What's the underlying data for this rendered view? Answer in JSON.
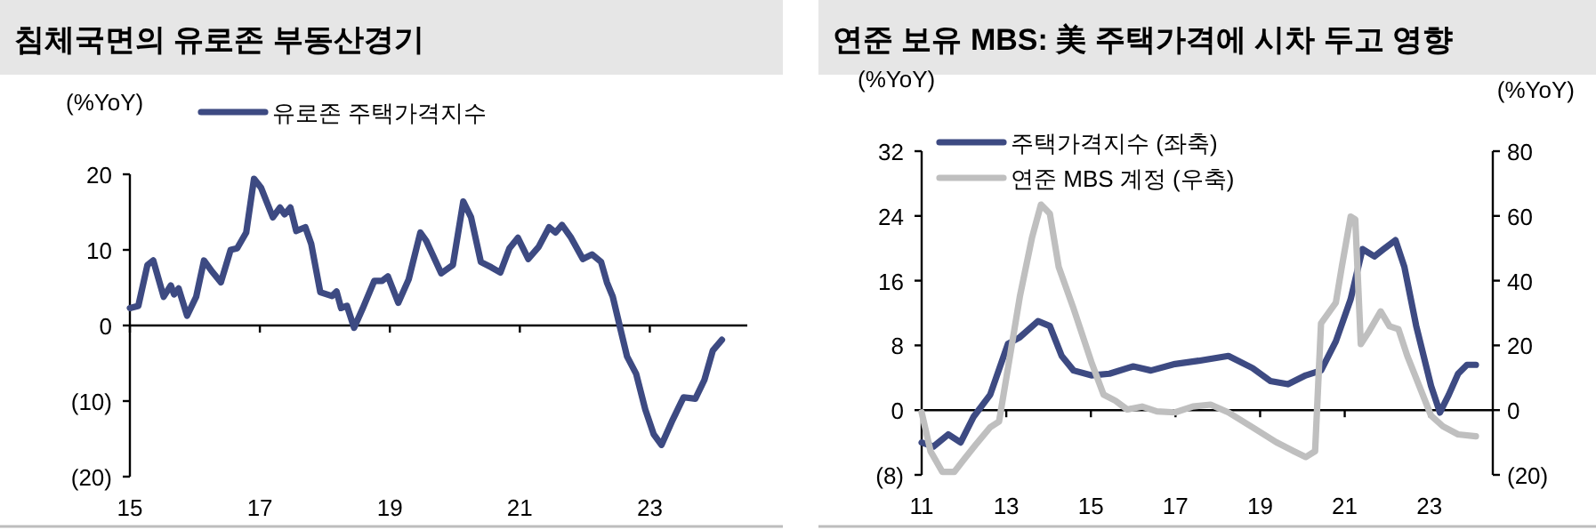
{
  "chart_data": [
    {
      "type": "line",
      "title": "침체국면의 유로존 부동산경기",
      "ylabel": "(%YoY)",
      "legend": "top left",
      "xlim": [
        15,
        24.5
      ],
      "ylim": [
        -20,
        20
      ],
      "xticks": [
        15,
        17,
        19,
        21,
        23
      ],
      "yticks": [
        {
          "value": -20,
          "label": "(20)"
        },
        {
          "value": -10,
          "label": "(10)"
        },
        0,
        10,
        20
      ],
      "series": [
        {
          "name": "유로존 주택가격지수",
          "color": "#3d4a82",
          "x": [
            15.0,
            15.13,
            15.27,
            15.36,
            15.52,
            15.63,
            15.68,
            15.75,
            15.88,
            16.02,
            16.14,
            16.25,
            16.4,
            16.55,
            16.65,
            16.79,
            16.91,
            17.02,
            17.2,
            17.31,
            17.38,
            17.47,
            17.56,
            17.7,
            17.79,
            17.93,
            18.11,
            18.18,
            18.25,
            18.34,
            18.45,
            18.58,
            18.76,
            18.88,
            18.97,
            19.13,
            19.29,
            19.47,
            19.56,
            19.79,
            19.97,
            20.13,
            20.25,
            20.4,
            20.56,
            20.7,
            20.84,
            20.97,
            21.13,
            21.29,
            21.45,
            21.55,
            21.65,
            21.79,
            21.97,
            22.11,
            22.25,
            22.34,
            22.43,
            22.56,
            22.65,
            22.79,
            22.93,
            23.06,
            23.18,
            23.34,
            23.52,
            23.7,
            23.84,
            23.97,
            24.11
          ],
          "values": [
            2.3,
            2.6,
            8.0,
            8.6,
            3.8,
            5.3,
            4.1,
            4.9,
            1.3,
            3.8,
            8.6,
            7.3,
            5.7,
            10.0,
            10.2,
            12.3,
            19.4,
            18.2,
            14.3,
            15.6,
            14.7,
            15.6,
            12.5,
            13.0,
            10.8,
            4.4,
            3.9,
            4.5,
            2.3,
            2.6,
            -0.3,
            2.2,
            5.9,
            5.9,
            6.5,
            3.0,
            6.1,
            12.3,
            11.2,
            6.9,
            8.0,
            16.4,
            14.3,
            8.4,
            7.7,
            7.0,
            10.2,
            11.6,
            8.8,
            10.4,
            13.0,
            12.3,
            13.3,
            11.6,
            8.8,
            9.4,
            8.4,
            5.7,
            3.8,
            -0.9,
            -4.1,
            -6.4,
            -11.1,
            -14.4,
            -15.8,
            -12.7,
            -9.5,
            -9.7,
            -7.2,
            -3.3,
            -1.9
          ]
        }
      ]
    },
    {
      "type": "line",
      "title": "연준 보유 MBS: 美 주택가격에 시차 두고 영향",
      "ylabel": "(%YoY)",
      "y2label": "(%YoY)",
      "legend": "top left",
      "xlim": [
        11,
        24.5
      ],
      "ylim": [
        -8,
        32
      ],
      "xticks": [
        11,
        13,
        15,
        17,
        19,
        21,
        23
      ],
      "yticks": [
        {
          "value": -8,
          "label": "(8)"
        },
        0,
        8,
        16,
        24,
        32
      ],
      "y2lim": [
        -20,
        80
      ],
      "y2ticks": [
        {
          "value": -20,
          "label": "(20)"
        },
        0,
        20,
        40,
        60,
        80
      ],
      "series": [
        {
          "name": "주택가격지수 (좌축)",
          "color": "#3d4a82",
          "x": [
            11.0,
            11.28,
            11.63,
            11.92,
            12.23,
            12.62,
            13.04,
            13.32,
            13.75,
            14.03,
            14.31,
            14.59,
            15.01,
            15.44,
            16.0,
            16.42,
            16.99,
            17.55,
            18.25,
            18.82,
            19.24,
            19.66,
            20.08,
            20.44,
            20.79,
            21.14,
            21.42,
            21.7,
            21.92,
            22.2,
            22.41,
            22.69,
            23.04,
            23.25,
            23.46,
            23.68,
            23.89,
            24.1
          ],
          "values": [
            -4.0,
            -4.5,
            -3.0,
            -4.0,
            -0.8,
            1.9,
            8.2,
            9.0,
            11.0,
            10.4,
            6.7,
            4.9,
            4.3,
            4.5,
            5.4,
            4.9,
            5.7,
            6.1,
            6.7,
            5.2,
            3.6,
            3.2,
            4.3,
            4.9,
            8.5,
            13.7,
            19.9,
            19.0,
            19.9,
            21.0,
            17.7,
            10.4,
            3.0,
            -0.3,
            1.9,
            4.5,
            5.6,
            5.6
          ]
        },
        {
          "name": "연준 MBS 계정 (우축)",
          "color": "#bfbfbf",
          "axis": "y2",
          "x": [
            11.0,
            11.21,
            11.49,
            11.77,
            11.99,
            12.27,
            12.62,
            12.83,
            13.04,
            13.32,
            13.61,
            13.82,
            14.03,
            14.24,
            14.59,
            15.01,
            15.3,
            15.58,
            15.86,
            16.21,
            16.56,
            16.99,
            17.41,
            17.83,
            18.25,
            18.82,
            19.38,
            19.8,
            20.08,
            20.3,
            20.44,
            20.79,
            20.93,
            21.14,
            21.25,
            21.38,
            21.56,
            21.85,
            22.06,
            22.27,
            22.48,
            22.76,
            23.04,
            23.32,
            23.68,
            24.1
          ],
          "values": [
            -0.7,
            -12.7,
            -19.1,
            -19.1,
            -15.4,
            -10.8,
            -5.3,
            -3.5,
            13.0,
            35.0,
            53.4,
            63.5,
            60.7,
            44.2,
            31.4,
            14.9,
            4.8,
            2.9,
            0.2,
            1.1,
            -0.4,
            -0.7,
            1.1,
            1.7,
            -0.7,
            -5.3,
            -9.9,
            -12.7,
            -14.5,
            -12.7,
            26.8,
            33.2,
            44.2,
            59.8,
            58.9,
            20.4,
            24.0,
            30.5,
            25.9,
            25.0,
            16.7,
            7.5,
            -1.7,
            -5.0,
            -7.5,
            -8.1
          ]
        }
      ]
    }
  ]
}
